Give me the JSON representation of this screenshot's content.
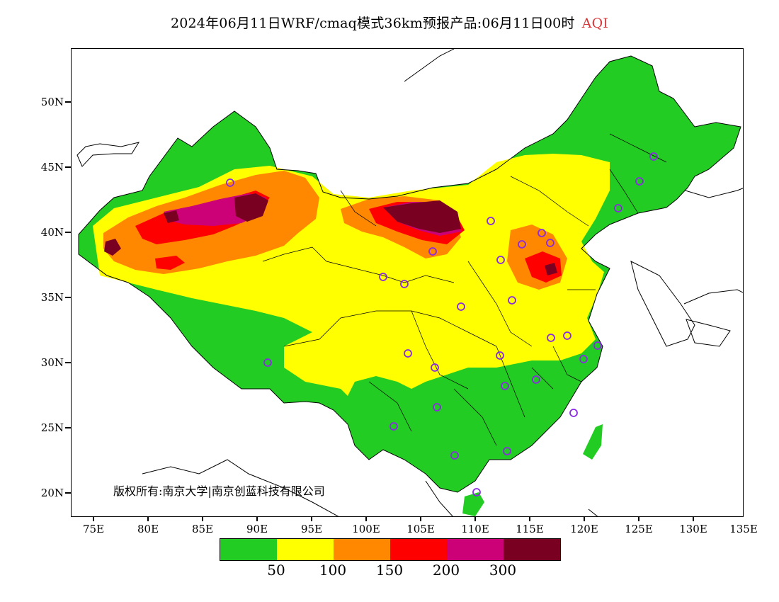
{
  "title": {
    "main": "2024年06月11日WRF/cmaq模式36km预报产品:06月11日00时",
    "accent": "AQI",
    "accent_color": "#d9383a"
  },
  "copyright": "版权所有:南京大学|南京创蓝科技有限公司",
  "axes": {
    "y_labels": [
      "50N",
      "45N",
      "40N",
      "35N",
      "30N",
      "25N",
      "20N"
    ],
    "x_labels": [
      "75E",
      "80E",
      "85E",
      "90E",
      "95E",
      "100E",
      "105E",
      "110E",
      "115E",
      "120E",
      "125E",
      "130E",
      "135E"
    ]
  },
  "legend": {
    "colors": [
      "#22cc22",
      "#ffff00",
      "#ff8800",
      "#ff0000",
      "#cc0077",
      "#7a0022"
    ],
    "labels": [
      "50",
      "100",
      "150",
      "200",
      "300"
    ]
  },
  "colors": {
    "land_outside": "#ffffff",
    "border": "#000000",
    "station_marker": "#8a2be2"
  }
}
